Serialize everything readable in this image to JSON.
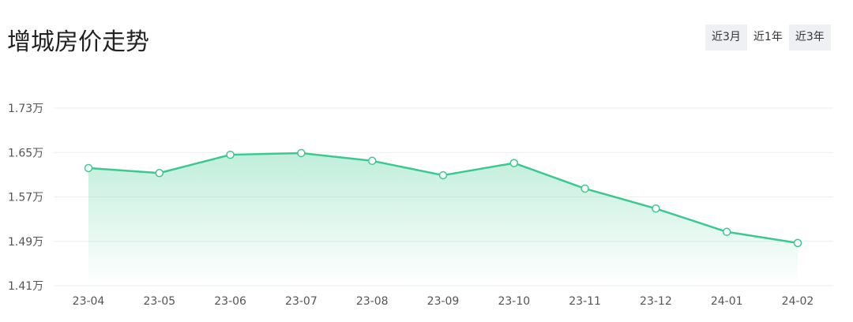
{
  "header": {
    "title": "增城房价走势",
    "range_tabs": [
      {
        "label": "近3月",
        "active": false
      },
      {
        "label": "近1年",
        "active": true
      },
      {
        "label": "近3年",
        "active": false
      }
    ]
  },
  "colors": {
    "line": "#3cc98f",
    "point_fill": "#ffffff",
    "area_top": "#3cc98f",
    "grid": "#eeeeee"
  },
  "chart_data": {
    "type": "area",
    "categories": [
      "23-04",
      "23-05",
      "23-06",
      "23-07",
      "23-08",
      "23-09",
      "23-10",
      "23-11",
      "23-12",
      "24-01",
      "24-02"
    ],
    "series": [
      {
        "values": [
          1.622,
          1.613,
          1.646,
          1.649,
          1.635,
          1.609,
          1.631,
          1.585,
          1.549,
          1.507,
          1.487
        ]
      }
    ],
    "y_ticks": [
      {
        "value": 1.41,
        "label": "1.41万"
      },
      {
        "value": 1.49,
        "label": "1.49万"
      },
      {
        "value": 1.57,
        "label": "1.57万"
      },
      {
        "value": 1.65,
        "label": "1.65万"
      },
      {
        "value": 1.73,
        "label": "1.73万"
      }
    ],
    "ylim": [
      1.41,
      1.73
    ],
    "grid": true,
    "legend": "none"
  }
}
